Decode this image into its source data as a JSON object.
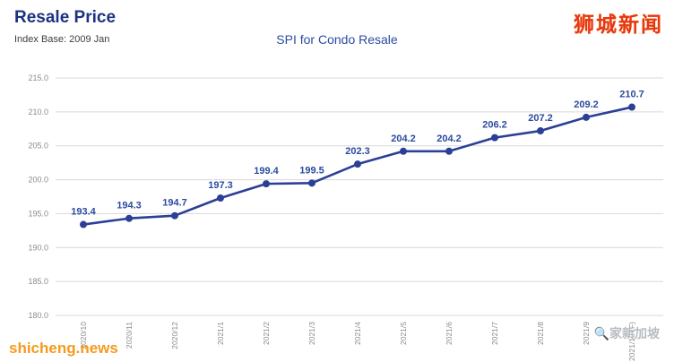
{
  "header": {
    "title": "Resale Price",
    "subtitle": "Index Base: 2009 Jan"
  },
  "watermarks": {
    "top_right": "狮城新闻",
    "bottom_left": "shicheng.news",
    "bottom_right": "🔍家新加坡"
  },
  "chart_data": {
    "type": "line",
    "title": "SPI for Condo Resale",
    "categories": [
      "2020/10",
      "2020/11",
      "2020/12",
      "2021/1",
      "2021/2",
      "2021/3",
      "2021/4",
      "2021/5",
      "2021/6",
      "2021/7",
      "2021/8",
      "2021/9",
      "2021/10 (F)"
    ],
    "values": [
      193.4,
      194.3,
      194.7,
      197.3,
      199.4,
      199.5,
      202.3,
      204.2,
      204.2,
      206.2,
      207.2,
      209.2,
      210.7
    ],
    "xlabel": "",
    "ylabel": "",
    "ylim": [
      180,
      215
    ],
    "ytick_step": 5,
    "grid": true,
    "legend": "none",
    "line_color": "#2b3f96",
    "label_color": "#2b4ba0",
    "grid_color": "#d8d8d8"
  }
}
